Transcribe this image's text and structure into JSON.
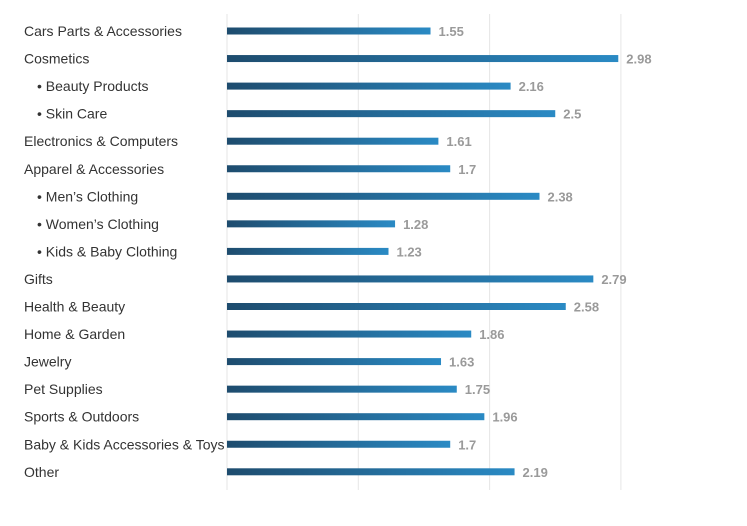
{
  "chart_data": {
    "type": "bar",
    "orientation": "horizontal",
    "categories": [
      "Cars Parts & Accessories",
      "Cosmetics",
      "• Beauty Products",
      "• Skin Care",
      "Electronics & Computers",
      "Apparel & Accessories",
      "• Men’s Clothing",
      "• Women’s Clothing",
      "• Kids & Baby Clothing",
      "Gifts",
      "Health & Beauty",
      "Home & Garden",
      "Jewelry",
      "Pet Supplies",
      "Sports & Outdoors",
      "Baby & Kids Accessories & Toys",
      "Other"
    ],
    "values": [
      1.55,
      2.98,
      2.16,
      2.5,
      1.61,
      1.7,
      2.38,
      1.28,
      1.23,
      2.79,
      2.58,
      1.86,
      1.63,
      1.75,
      1.96,
      1.7,
      2.19
    ],
    "value_labels": [
      "1.55",
      "2.98",
      "2.16",
      "2.5",
      "1.61",
      "1.7",
      "2.38",
      "1.28",
      "1.23",
      "2.79",
      "2.58",
      "1.86",
      "1.63",
      "1.75",
      "1.96",
      "1.7",
      "2.19"
    ],
    "xlim": [
      0,
      3
    ],
    "grid": true,
    "legend": "none",
    "title": "",
    "xlabel": "",
    "ylabel": "",
    "colors": {
      "bar_start": "#1e4c6e",
      "bar_end": "#2a8ac4",
      "category_text": "#333333",
      "value_text": "#9a9a9a",
      "grid": "#e6e6e6"
    }
  }
}
